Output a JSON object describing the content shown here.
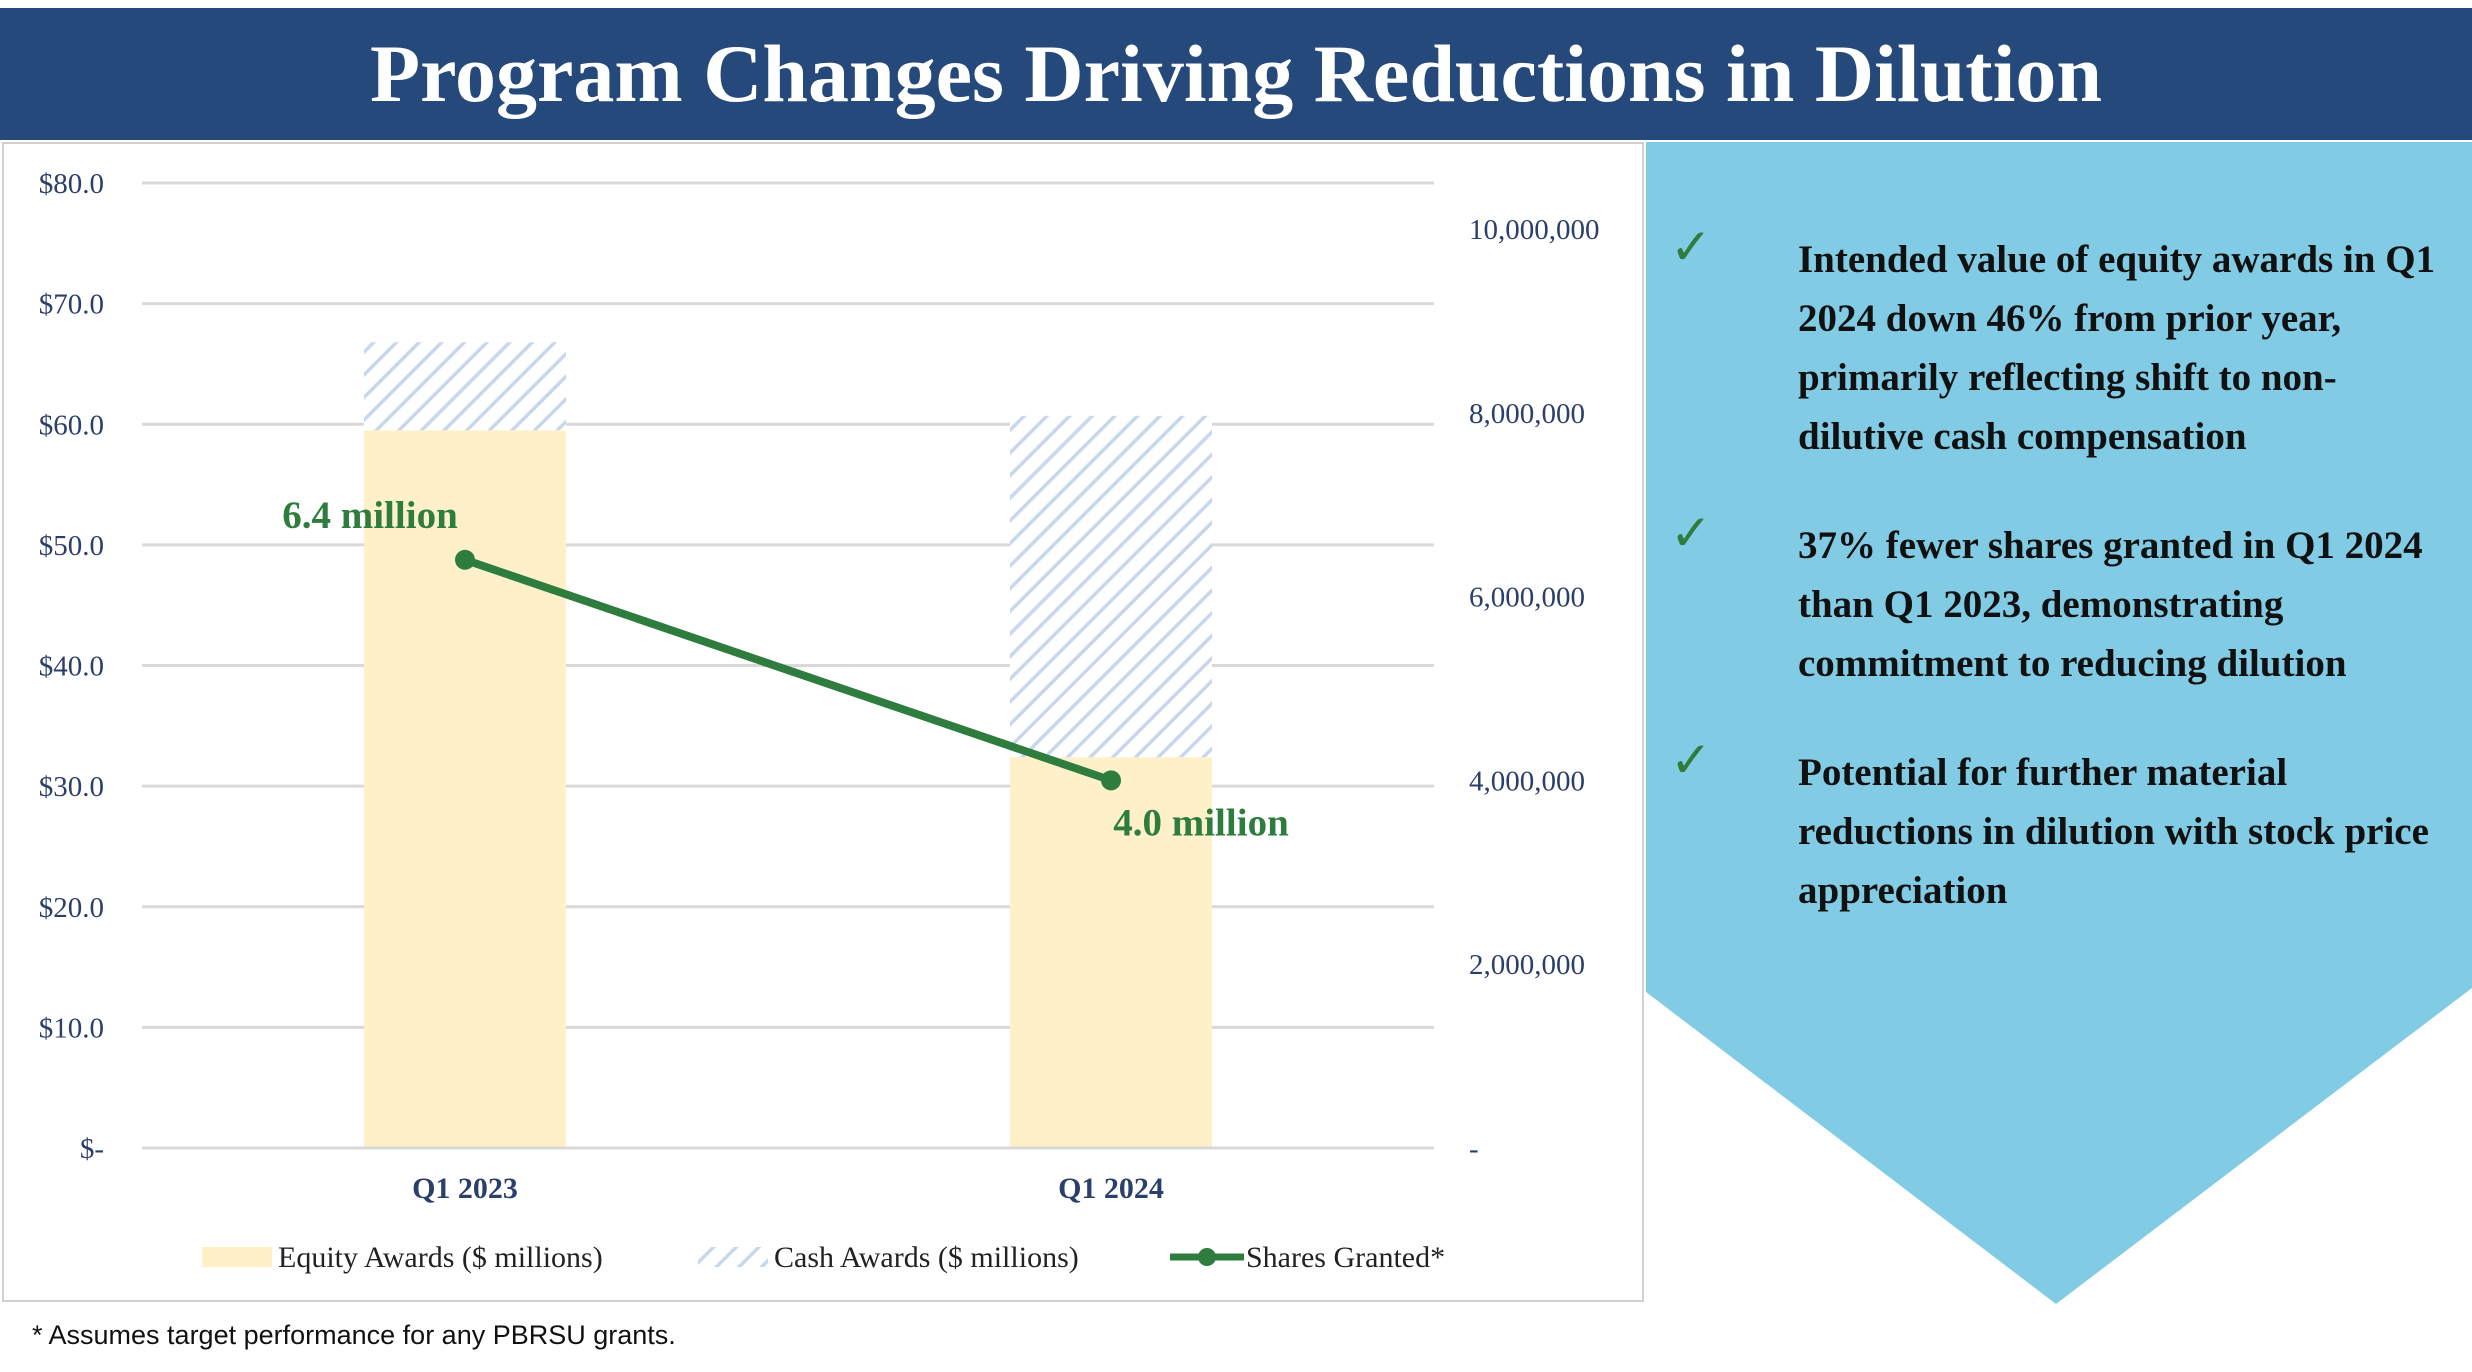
{
  "page": {
    "title": "Program Changes Driving Reductions in Dilution",
    "footnote": "* Assumes target performance for any PBRSU grants."
  },
  "colors": {
    "title_bg": "#25497a",
    "equity": "#fef0c9",
    "cash_hatch": "#c9d7ee",
    "shares_line": "#2e7d3e",
    "panel": "#82cbe4",
    "axis_text": "#2b3f6b"
  },
  "bullets": [
    {
      "icon": "check-icon",
      "text": "Intended value of equity awards in Q1 2024 down 46% from prior year, primarily reflecting shift to non-dilutive cash compensation"
    },
    {
      "icon": "check-icon",
      "text": "37% fewer shares granted in Q1 2024 than Q1 2023, demonstrating commitment to reducing dilution"
    },
    {
      "icon": "check-icon",
      "text": "Potential for further material reductions in dilution with stock price appreciation"
    }
  ],
  "chart_data": {
    "type": "bar",
    "stacked": true,
    "categories": [
      "Q1 2023",
      "Q1 2024"
    ],
    "series": [
      {
        "name": "Equity Awards ($ millions)",
        "axis": "left",
        "style": "solid",
        "values": [
          59.5,
          32.4
        ]
      },
      {
        "name": "Cash Awards ($ millions)",
        "axis": "left",
        "style": "hatched",
        "values": [
          7.3,
          28.3
        ]
      },
      {
        "name": "Shares Granted*",
        "axis": "right",
        "type": "line",
        "values": [
          6400000,
          4000000
        ],
        "labels": [
          "6.4 million",
          "4.0 million"
        ]
      }
    ],
    "y_left": {
      "min": 0,
      "max": 80,
      "ticks": [
        0,
        10,
        20,
        30,
        40,
        50,
        60,
        70,
        80
      ],
      "tick_labels": [
        "$-",
        "$10.0",
        "$20.0",
        "$30.0",
        "$40.0",
        "$50.0",
        "$60.0",
        "$70.0",
        "$80.0"
      ]
    },
    "y_right": {
      "min": 0,
      "max": 10500000,
      "ticks": [
        0,
        2000000,
        4000000,
        6000000,
        8000000,
        10000000
      ],
      "tick_labels": [
        "-",
        "2,000,000",
        "4,000,000",
        "6,000,000",
        "8,000,000",
        "10,000,000"
      ]
    },
    "grid": true,
    "legend": "bottom"
  }
}
